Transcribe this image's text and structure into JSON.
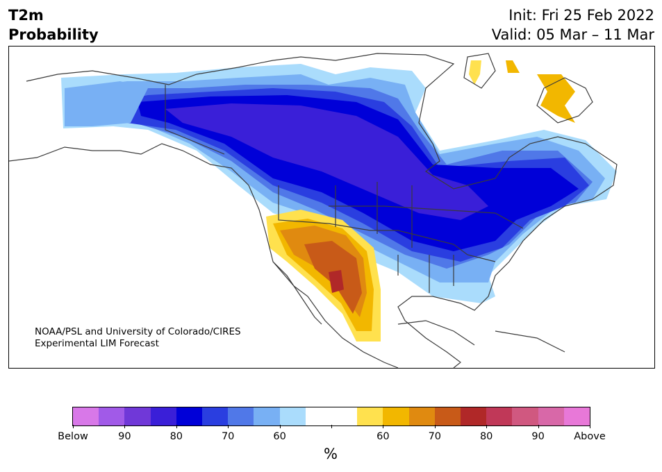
{
  "title": {
    "left_line1": "T2m",
    "left_line2": "Probability",
    "right_line1": "Init: Fri 25 Feb 2022",
    "right_line2": "Valid: 05 Mar – 11 Mar"
  },
  "credit": {
    "line1": "NOAA/PSL and University of Colorado/CIRES",
    "line2": "Experimental LIM Forecast"
  },
  "colorbar": {
    "unit": "%",
    "colors": [
      "#d878e8",
      "#a15ae8",
      "#7038d8",
      "#3a1fd8",
      "#0000d8",
      "#2a3ee0",
      "#5078e8",
      "#78b0f4",
      "#aadcfc",
      "#ffffff",
      "#ffffff",
      "#ffe14e",
      "#f2b700",
      "#e08a10",
      "#c85a18",
      "#b02828",
      "#c03858",
      "#d05880",
      "#d868a8",
      "#e878d8"
    ],
    "labels": [
      "Below",
      "90",
      "80",
      "70",
      "60",
      "",
      "60",
      "70",
      "80",
      "90",
      "Above"
    ]
  },
  "map_colors": {
    "land_outline": "#3a3a3a",
    "cold_1": "#aadcfc",
    "cold_2": "#78b0f4",
    "cold_3": "#5078e8",
    "cold_4": "#2a3ee0",
    "cold_5": "#0000d8",
    "cold_6": "#3a1fd8",
    "warm_1": "#ffe14e",
    "warm_2": "#f2b700",
    "warm_3": "#e08a10",
    "warm_4": "#c85a18",
    "warm_5": "#b02828"
  }
}
